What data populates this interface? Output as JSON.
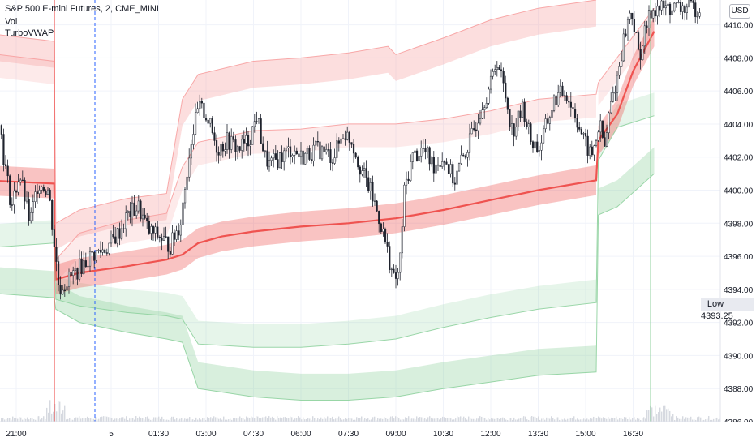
{
  "header": {
    "symbol_line": "S&P 500 E-mini Futures, 2, CME_MINI",
    "indicator_1": "Vol",
    "indicator_2": "TurboVWAP"
  },
  "currency_button": "USD",
  "low_label": {
    "text": "Low",
    "value": "4393.25"
  },
  "colors": {
    "grid": "#f0f3fa",
    "candle": "#1e222d",
    "vwap": "#ef5350",
    "upper_band": "#f7a0a0",
    "lower_band": "#8fd19e",
    "volume": "#d6d9e0",
    "session_line": "#2962ff"
  },
  "chart_data": {
    "type": "candlestick",
    "title": "S&P 500 E-mini Futures, 2, CME_MINI",
    "yaxis_ticks": [
      "4410.00",
      "4408.00",
      "4406.00",
      "4404.00",
      "4402.00",
      "4400.00",
      "4398.00",
      "4396.00",
      "4394.00",
      "4392.00",
      "4390.00",
      "4388.00",
      "4386.00"
    ],
    "ylim": [
      4386,
      4411.5
    ],
    "xaxis_ticks": [
      "21:00",
      "5",
      "01:30",
      "03:00",
      "04:30",
      "06:00",
      "07:30",
      "09:00",
      "10:30",
      "12:00",
      "13:30",
      "15:00",
      "16:30"
    ],
    "price_path": [
      [
        "20:00",
        4405
      ],
      [
        "20:20",
        4407
      ],
      [
        "20:35",
        4402
      ],
      [
        "20:50",
        4399
      ],
      [
        "21:05",
        4401
      ],
      [
        "21:25",
        4398
      ],
      [
        "21:40",
        4400.5
      ],
      [
        "22:00",
        4400
      ],
      [
        "22:20",
        4394
      ],
      [
        "22:50",
        4395
      ],
      [
        "23:20",
        4396
      ],
      [
        "23:50",
        4396.5
      ],
      [
        "00:15",
        4397.5
      ],
      [
        "00:30",
        4398.5
      ],
      [
        "00:50",
        4399
      ],
      [
        "01:10",
        4397.5
      ],
      [
        "01:30",
        4397.2
      ],
      [
        "01:50",
        4396.6
      ],
      [
        "02:10",
        4398
      ],
      [
        "02:30",
        4403
      ],
      [
        "02:45",
        4405
      ],
      [
        "03:00",
        4404.5
      ],
      [
        "03:20",
        4402.5
      ],
      [
        "03:40",
        4403
      ],
      [
        "04:00",
        4402.5
      ],
      [
        "04:20",
        4403
      ],
      [
        "04:35",
        4404.5
      ],
      [
        "04:50",
        4402
      ],
      [
        "05:00",
        4401.5
      ],
      [
        "05:20",
        4402
      ],
      [
        "05:40",
        4402.5
      ],
      [
        "06:00",
        4402
      ],
      [
        "06:30",
        4402.5
      ],
      [
        "07:00",
        4402
      ],
      [
        "07:20",
        4403.5
      ],
      [
        "07:35",
        4403
      ],
      [
        "07:50",
        4401.5
      ],
      [
        "08:10",
        4400
      ],
      [
        "08:30",
        4398
      ],
      [
        "08:45",
        4396
      ],
      [
        "08:55",
        4394.5
      ],
      [
        "09:05",
        4395
      ],
      [
        "09:15",
        4400
      ],
      [
        "09:30",
        4402
      ],
      [
        "09:50",
        4402.5
      ],
      [
        "10:10",
        4401.5
      ],
      [
        "10:30",
        4402
      ],
      [
        "10:50",
        4400.5
      ],
      [
        "11:00",
        4401.5
      ],
      [
        "11:20",
        4403
      ],
      [
        "11:40",
        4405
      ],
      [
        "12:00",
        4406.5
      ],
      [
        "12:10",
        4408
      ],
      [
        "12:25",
        4406
      ],
      [
        "12:40",
        4403.5
      ],
      [
        "13:00",
        4405
      ],
      [
        "13:15",
        4403
      ],
      [
        "13:30",
        4402.5
      ],
      [
        "13:45",
        4404
      ],
      [
        "14:00",
        4405.5
      ],
      [
        "14:20",
        4406
      ],
      [
        "14:40",
        4404.5
      ],
      [
        "14:55",
        4403
      ],
      [
        "15:10",
        4402
      ],
      [
        "15:25",
        4404
      ],
      [
        "15:35",
        4402.5
      ],
      [
        "15:45",
        4405
      ],
      [
        "16:00",
        4407
      ],
      [
        "16:10",
        4409
      ],
      [
        "16:25",
        4411
      ],
      [
        "16:40",
        4408
      ],
      [
        "16:55",
        4410
      ],
      [
        "17:05",
        4411
      ]
    ],
    "series": [
      {
        "name": "VWAP",
        "values": [
          [
            "20:00",
            4400.6
          ],
          [
            "22:12",
            4400.4
          ],
          [
            "22:15",
            4394.6
          ],
          [
            "23:00",
            4395
          ],
          [
            "00:30",
            4395.4
          ],
          [
            "01:45",
            4395.8
          ],
          [
            "02:15",
            4396.1
          ],
          [
            "02:45",
            4396.8
          ],
          [
            "03:30",
            4397.2
          ],
          [
            "04:30",
            4397.5
          ],
          [
            "06:00",
            4397.8
          ],
          [
            "07:30",
            4398
          ],
          [
            "09:00",
            4398.3
          ],
          [
            "10:30",
            4398.8
          ],
          [
            "12:00",
            4399.4
          ],
          [
            "13:30",
            4400
          ],
          [
            "15:20",
            4400.6
          ],
          [
            "15:24",
            4403
          ],
          [
            "16:00",
            4404.6
          ],
          [
            "16:30",
            4407.2
          ],
          [
            "17:10",
            4409.6
          ]
        ]
      },
      {
        "name": "Upper band 1",
        "values": [
          [
            "20:00",
            4408.3
          ],
          [
            "22:12",
            4407.8
          ],
          [
            "22:15",
            4395.8
          ],
          [
            "23:00",
            4397.4
          ],
          [
            "00:30",
            4398.2
          ],
          [
            "01:45",
            4398.6
          ],
          [
            "02:15",
            4401.4
          ],
          [
            "02:45",
            4402.9
          ],
          [
            "04:30",
            4403.6
          ],
          [
            "06:00",
            4403.7
          ],
          [
            "07:30",
            4404
          ],
          [
            "09:00",
            4404
          ],
          [
            "10:30",
            4404.3
          ],
          [
            "12:00",
            4404.8
          ],
          [
            "13:30",
            4405.5
          ],
          [
            "15:20",
            4405.8
          ],
          [
            "15:24",
            4406.5
          ],
          [
            "17:10",
            4411
          ]
        ]
      },
      {
        "name": "Upper band 2",
        "values": [
          [
            "20:00",
            4409.5
          ],
          [
            "22:12",
            4409
          ],
          [
            "22:15",
            4398
          ],
          [
            "23:00",
            4398.8
          ],
          [
            "00:30",
            4399.5
          ],
          [
            "01:45",
            4399.8
          ],
          [
            "02:15",
            4405.5
          ],
          [
            "02:45",
            4407
          ],
          [
            "04:30",
            4407.8
          ],
          [
            "06:00",
            4408
          ],
          [
            "07:30",
            4408.3
          ],
          [
            "08:45",
            4408.7
          ],
          [
            "09:00",
            4408.2
          ],
          [
            "10:30",
            4409.2
          ],
          [
            "12:00",
            4410.3
          ],
          [
            "13:30",
            4411
          ],
          [
            "15:20",
            4411.5
          ]
        ]
      },
      {
        "name": "Lower band 1",
        "values": [
          [
            "20:00",
            4396.5
          ],
          [
            "22:12",
            4396.8
          ],
          [
            "22:15",
            4393.4
          ],
          [
            "23:00",
            4393
          ],
          [
            "00:30",
            4392.6
          ],
          [
            "01:45",
            4392.4
          ],
          [
            "02:15",
            4392.2
          ],
          [
            "02:45",
            4390.7
          ],
          [
            "04:30",
            4390.5
          ],
          [
            "06:00",
            4390.5
          ],
          [
            "07:30",
            4390.7
          ],
          [
            "09:00",
            4391
          ],
          [
            "10:30",
            4391.7
          ],
          [
            "12:00",
            4392.3
          ],
          [
            "13:30",
            4392.8
          ],
          [
            "15:20",
            4393.2
          ],
          [
            "15:24",
            4401.8
          ],
          [
            "16:00",
            4403.8
          ],
          [
            "17:10",
            4404.5
          ]
        ]
      },
      {
        "name": "Lower band 2",
        "values": [
          [
            "20:00",
            4393.8
          ],
          [
            "22:12",
            4393.5
          ],
          [
            "22:15",
            4392.8
          ],
          [
            "23:00",
            4392
          ],
          [
            "00:30",
            4391.4
          ],
          [
            "01:45",
            4391
          ],
          [
            "02:15",
            4390.8
          ],
          [
            "02:45",
            4388
          ],
          [
            "04:30",
            4387.5
          ],
          [
            "06:00",
            4387.3
          ],
          [
            "07:30",
            4387.3
          ],
          [
            "09:00",
            4387.5
          ],
          [
            "10:30",
            4388
          ],
          [
            "12:00",
            4388.4
          ],
          [
            "13:30",
            4388.8
          ],
          [
            "15:20",
            4389
          ],
          [
            "15:24",
            4398.5
          ],
          [
            "16:00",
            4399
          ],
          [
            "17:10",
            4401
          ]
        ]
      }
    ],
    "markers": {
      "low": 4393.25,
      "session_break_x": "22:13",
      "date_divider_x": "5"
    }
  }
}
